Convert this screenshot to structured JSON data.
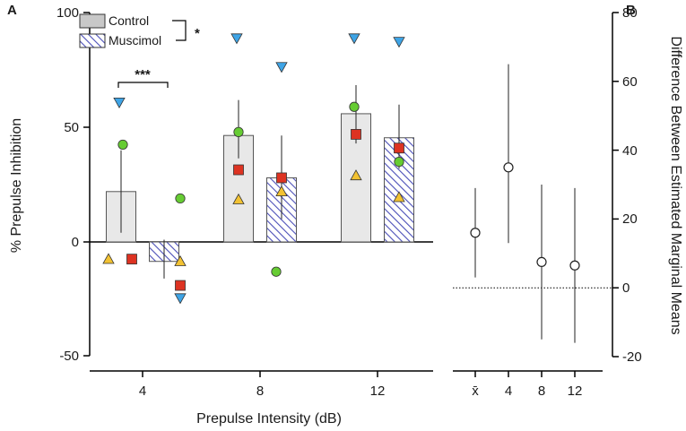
{
  "chart_data": [
    {
      "panel_label": "A",
      "type": "bar",
      "xlabel": "Prepulse Intensity (dB)",
      "ylabel": "% Prepulse Inhibition",
      "ylim": [
        -50,
        100
      ],
      "yticks": [
        "-50",
        "0",
        "50",
        "100"
      ],
      "categories": [
        "4",
        "8",
        "12"
      ],
      "series": [
        {
          "name": "Control",
          "values": [
            22,
            46.5,
            56
          ],
          "err_low": [
            4,
            36.5,
            43
          ],
          "err_high": [
            40,
            62,
            68.5
          ],
          "points": [
            {
              "category": "4",
              "triangle_down": 61,
              "circle": 42.5,
              "square": -7.5,
              "triangle_up": -7.5
            },
            {
              "category": "8",
              "triangle_down": 89,
              "circle": 48,
              "square": 31.5,
              "triangle_up": 18.5
            },
            {
              "category": "12",
              "triangle_down": 89,
              "circle": 59,
              "square": 47,
              "triangle_up": 29
            }
          ]
        },
        {
          "name": "Muscimol",
          "values": [
            -8.5,
            28,
            45.5
          ],
          "err_low": [
            -16,
            10,
            32
          ],
          "err_high": [
            1,
            46.5,
            60
          ],
          "points": [
            {
              "category": "4",
              "triangle_down": -24.5,
              "circle": 19,
              "square": -19,
              "triangle_up": -8.5
            },
            {
              "category": "8",
              "triangle_down": 76.5,
              "circle": -13,
              "square": 28,
              "triangle_up": 22
            },
            {
              "category": "12",
              "triangle_down": 87.5,
              "circle": 35,
              "square": 41,
              "triangle_up": 19.5
            }
          ]
        }
      ],
      "significance": [
        {
          "label": "***",
          "between": "Control vs Muscimol at 4 dB"
        },
        {
          "label": "*",
          "between": "Control vs Muscimol (legend)"
        }
      ],
      "legend": [
        "Control",
        "Muscimol"
      ],
      "colors": {
        "control_bar": "#e8e8e8",
        "muscimol_hatch": "#4b4fb8",
        "triangle_down": "#3ea4e6",
        "circle": "#66cc33",
        "square": "#dd3322",
        "triangle_up": "#f2c232"
      }
    },
    {
      "panel_label": "B",
      "type": "scatter",
      "ylabel": "Difference Between Estimated Marginal Means",
      "ylim": [
        -20,
        80
      ],
      "yticks": [
        "-20",
        "0",
        "20",
        "40",
        "60",
        "80"
      ],
      "categories": [
        "x̄",
        "4",
        "8",
        "12"
      ],
      "values": [
        16,
        35,
        7.5,
        6.5
      ],
      "err_low": [
        3,
        13,
        -15,
        -16
      ],
      "err_high": [
        29,
        65,
        30,
        29
      ],
      "reference_line": 0
    }
  ]
}
